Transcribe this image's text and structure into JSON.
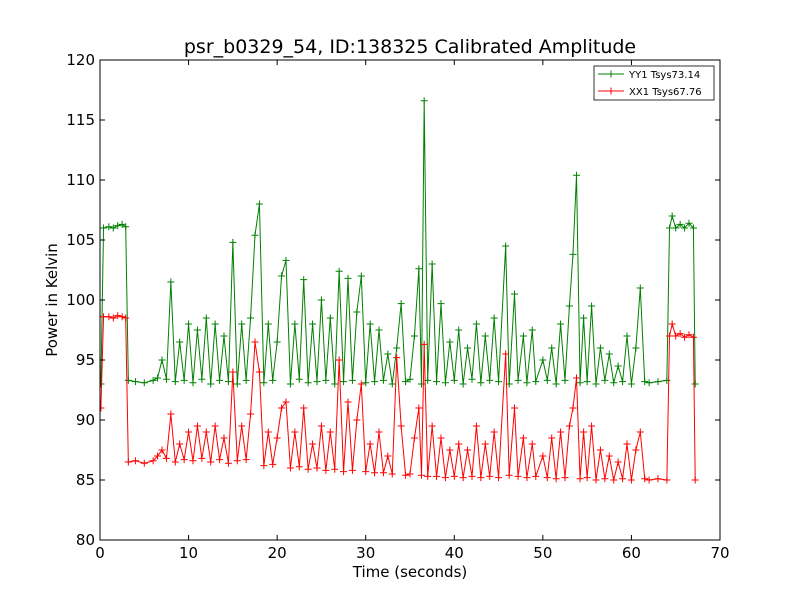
{
  "chart_data": {
    "type": "line",
    "title": "psr_b0329_54, ID:138325 Calibrated Amplitude",
    "xlabel": "Time (seconds)",
    "ylabel": "Power in Kelvin",
    "xlim": [
      0,
      70
    ],
    "ylim": [
      80,
      120
    ],
    "x_ticks": [
      "0",
      "10",
      "20",
      "30",
      "40",
      "50",
      "60",
      "70"
    ],
    "y_ticks": [
      "80",
      "85",
      "90",
      "95",
      "100",
      "105",
      "110",
      "115",
      "120"
    ],
    "grid": false,
    "legend_position": "top-right",
    "marker": "plus",
    "series": [
      {
        "name": "YY1 Tsys73.14",
        "color": "#008000",
        "points": [
          [
            0.1,
            93.0
          ],
          [
            0.4,
            106.0
          ],
          [
            1.0,
            106.1
          ],
          [
            1.5,
            106.0
          ],
          [
            2.0,
            106.2
          ],
          [
            2.5,
            106.3
          ],
          [
            2.9,
            106.1
          ],
          [
            3.2,
            93.3
          ],
          [
            4.0,
            93.2
          ],
          [
            5.0,
            93.1
          ],
          [
            6.0,
            93.3
          ],
          [
            6.5,
            93.5
          ],
          [
            7.0,
            95.0
          ],
          [
            7.5,
            93.4
          ],
          [
            8.0,
            101.5
          ],
          [
            8.5,
            93.2
          ],
          [
            9.0,
            96.5
          ],
          [
            9.5,
            93.3
          ],
          [
            10.0,
            98.0
          ],
          [
            10.5,
            93.1
          ],
          [
            11.0,
            97.5
          ],
          [
            11.5,
            93.4
          ],
          [
            12.0,
            98.5
          ],
          [
            12.5,
            93.0
          ],
          [
            13.0,
            98.0
          ],
          [
            13.5,
            93.3
          ],
          [
            14.0,
            97.0
          ],
          [
            14.5,
            93.2
          ],
          [
            15.0,
            104.8
          ],
          [
            15.5,
            93.0
          ],
          [
            16.0,
            98.0
          ],
          [
            16.5,
            93.3
          ],
          [
            17.0,
            98.5
          ],
          [
            17.5,
            105.4
          ],
          [
            18.0,
            108.0
          ],
          [
            18.5,
            93.1
          ],
          [
            19.0,
            98.0
          ],
          [
            19.5,
            93.3
          ],
          [
            20.0,
            96.5
          ],
          [
            20.5,
            102.0
          ],
          [
            21.0,
            103.3
          ],
          [
            21.5,
            93.0
          ],
          [
            22.0,
            98.0
          ],
          [
            22.5,
            93.4
          ],
          [
            23.0,
            101.7
          ],
          [
            23.5,
            93.1
          ],
          [
            24.0,
            98.0
          ],
          [
            24.5,
            93.2
          ],
          [
            25.0,
            100.0
          ],
          [
            25.5,
            93.3
          ],
          [
            26.0,
            98.5
          ],
          [
            26.5,
            93.0
          ],
          [
            27.0,
            102.4
          ],
          [
            27.5,
            93.2
          ],
          [
            28.0,
            101.8
          ],
          [
            28.5,
            93.3
          ],
          [
            29.0,
            99.0
          ],
          [
            29.5,
            102.0
          ],
          [
            30.0,
            93.1
          ],
          [
            30.5,
            98.0
          ],
          [
            31.0,
            93.2
          ],
          [
            31.5,
            97.5
          ],
          [
            32.0,
            93.3
          ],
          [
            32.5,
            95.5
          ],
          [
            33.0,
            93.0
          ],
          [
            33.5,
            96.0
          ],
          [
            34.0,
            99.7
          ],
          [
            34.5,
            93.2
          ],
          [
            35.0,
            93.4
          ],
          [
            35.5,
            97.0
          ],
          [
            36.0,
            102.6
          ],
          [
            36.3,
            93.0
          ],
          [
            36.6,
            116.6
          ],
          [
            37.0,
            93.3
          ],
          [
            37.5,
            103.0
          ],
          [
            38.0,
            93.2
          ],
          [
            38.5,
            99.7
          ],
          [
            39.0,
            93.1
          ],
          [
            39.5,
            96.5
          ],
          [
            40.0,
            93.3
          ],
          [
            40.5,
            97.5
          ],
          [
            41.0,
            93.0
          ],
          [
            41.5,
            96.0
          ],
          [
            42.0,
            93.4
          ],
          [
            42.5,
            98.0
          ],
          [
            43.0,
            93.1
          ],
          [
            43.5,
            97.0
          ],
          [
            44.0,
            93.3
          ],
          [
            44.5,
            98.5
          ],
          [
            45.0,
            93.2
          ],
          [
            45.8,
            104.5
          ],
          [
            46.2,
            93.0
          ],
          [
            46.8,
            100.5
          ],
          [
            47.2,
            93.3
          ],
          [
            47.8,
            97.0
          ],
          [
            48.2,
            93.1
          ],
          [
            48.8,
            97.5
          ],
          [
            49.2,
            93.2
          ],
          [
            50.0,
            95.0
          ],
          [
            50.5,
            93.3
          ],
          [
            51.0,
            96.0
          ],
          [
            51.5,
            93.0
          ],
          [
            52.0,
            98.0
          ],
          [
            52.5,
            93.3
          ],
          [
            53.0,
            99.5
          ],
          [
            53.4,
            103.8
          ],
          [
            53.8,
            110.4
          ],
          [
            54.2,
            93.1
          ],
          [
            54.6,
            98.5
          ],
          [
            55.0,
            93.2
          ],
          [
            55.5,
            99.5
          ],
          [
            56.0,
            93.0
          ],
          [
            56.5,
            96.0
          ],
          [
            57.0,
            93.3
          ],
          [
            57.5,
            95.5
          ],
          [
            58.0,
            93.1
          ],
          [
            58.5,
            94.5
          ],
          [
            59.0,
            93.2
          ],
          [
            59.5,
            97.0
          ],
          [
            60.0,
            93.0
          ],
          [
            60.5,
            96.0
          ],
          [
            61.0,
            101.0
          ],
          [
            61.5,
            93.2
          ],
          [
            62.0,
            93.1
          ],
          [
            63.0,
            93.2
          ],
          [
            64.0,
            93.3
          ],
          [
            64.3,
            106.0
          ],
          [
            64.6,
            107.0
          ],
          [
            65.0,
            106.0
          ],
          [
            65.5,
            106.3
          ],
          [
            66.0,
            106.0
          ],
          [
            66.5,
            106.4
          ],
          [
            67.0,
            106.0
          ],
          [
            67.2,
            93.0
          ]
        ]
      },
      {
        "name": "XX1 Tsys67.76",
        "color": "#ff0000",
        "points": [
          [
            0.1,
            91.0
          ],
          [
            0.4,
            98.6
          ],
          [
            1.0,
            98.6
          ],
          [
            1.5,
            98.5
          ],
          [
            2.0,
            98.7
          ],
          [
            2.5,
            98.6
          ],
          [
            2.9,
            98.5
          ],
          [
            3.2,
            86.5
          ],
          [
            4.0,
            86.6
          ],
          [
            5.0,
            86.4
          ],
          [
            6.0,
            86.6
          ],
          [
            6.5,
            87.0
          ],
          [
            7.0,
            87.5
          ],
          [
            7.5,
            86.8
          ],
          [
            8.0,
            90.5
          ],
          [
            8.5,
            86.5
          ],
          [
            9.0,
            88.0
          ],
          [
            9.5,
            86.7
          ],
          [
            10.0,
            89.0
          ],
          [
            10.5,
            86.6
          ],
          [
            11.0,
            89.5
          ],
          [
            11.5,
            86.8
          ],
          [
            12.0,
            89.0
          ],
          [
            12.5,
            86.5
          ],
          [
            13.0,
            89.5
          ],
          [
            13.5,
            86.7
          ],
          [
            14.0,
            88.5
          ],
          [
            14.5,
            86.4
          ],
          [
            15.0,
            94.0
          ],
          [
            15.5,
            86.6
          ],
          [
            16.0,
            89.5
          ],
          [
            16.5,
            86.7
          ],
          [
            17.0,
            90.5
          ],
          [
            17.5,
            96.5
          ],
          [
            18.0,
            94.0
          ],
          [
            18.5,
            86.2
          ],
          [
            19.0,
            89.0
          ],
          [
            19.5,
            86.3
          ],
          [
            20.0,
            88.5
          ],
          [
            20.5,
            91.0
          ],
          [
            21.0,
            91.5
          ],
          [
            21.5,
            86.0
          ],
          [
            22.0,
            89.0
          ],
          [
            22.5,
            86.1
          ],
          [
            23.0,
            91.0
          ],
          [
            23.5,
            85.9
          ],
          [
            24.0,
            88.0
          ],
          [
            24.5,
            86.0
          ],
          [
            25.0,
            89.5
          ],
          [
            25.5,
            85.8
          ],
          [
            26.0,
            89.0
          ],
          [
            26.5,
            85.9
          ],
          [
            27.0,
            95.0
          ],
          [
            27.5,
            85.7
          ],
          [
            28.0,
            91.5
          ],
          [
            28.5,
            85.8
          ],
          [
            29.0,
            90.0
          ],
          [
            29.5,
            93.0
          ],
          [
            30.0,
            85.7
          ],
          [
            30.5,
            88.0
          ],
          [
            31.0,
            85.6
          ],
          [
            31.5,
            89.0
          ],
          [
            32.0,
            85.6
          ],
          [
            32.5,
            87.0
          ],
          [
            33.0,
            85.5
          ],
          [
            33.5,
            95.2
          ],
          [
            34.0,
            89.5
          ],
          [
            34.5,
            85.4
          ],
          [
            35.0,
            85.5
          ],
          [
            35.5,
            88.5
          ],
          [
            36.0,
            91.0
          ],
          [
            36.3,
            85.4
          ],
          [
            36.6,
            96.3
          ],
          [
            37.0,
            85.3
          ],
          [
            37.5,
            89.5
          ],
          [
            38.0,
            85.3
          ],
          [
            38.5,
            88.5
          ],
          [
            39.0,
            85.2
          ],
          [
            39.5,
            87.5
          ],
          [
            40.0,
            85.3
          ],
          [
            40.5,
            88.0
          ],
          [
            41.0,
            85.2
          ],
          [
            41.5,
            87.5
          ],
          [
            42.0,
            85.3
          ],
          [
            42.5,
            89.5
          ],
          [
            43.0,
            85.2
          ],
          [
            43.5,
            88.0
          ],
          [
            44.0,
            85.3
          ],
          [
            44.5,
            89.0
          ],
          [
            45.0,
            85.2
          ],
          [
            45.8,
            95.5
          ],
          [
            46.2,
            85.4
          ],
          [
            46.8,
            91.0
          ],
          [
            47.2,
            85.3
          ],
          [
            47.8,
            88.5
          ],
          [
            48.2,
            85.2
          ],
          [
            48.8,
            88.0
          ],
          [
            49.2,
            85.3
          ],
          [
            50.0,
            87.0
          ],
          [
            50.5,
            85.2
          ],
          [
            51.0,
            88.5
          ],
          [
            51.5,
            85.1
          ],
          [
            52.0,
            89.0
          ],
          [
            52.5,
            85.2
          ],
          [
            53.0,
            89.5
          ],
          [
            53.4,
            91.0
          ],
          [
            53.8,
            93.5
          ],
          [
            54.2,
            85.1
          ],
          [
            54.6,
            89.0
          ],
          [
            55.0,
            85.2
          ],
          [
            55.5,
            89.5
          ],
          [
            56.0,
            85.0
          ],
          [
            56.5,
            87.5
          ],
          [
            57.0,
            85.1
          ],
          [
            57.5,
            87.0
          ],
          [
            58.0,
            85.0
          ],
          [
            58.5,
            86.5
          ],
          [
            59.0,
            85.1
          ],
          [
            59.5,
            88.0
          ],
          [
            60.0,
            85.0
          ],
          [
            60.5,
            87.5
          ],
          [
            61.0,
            89.0
          ],
          [
            61.5,
            85.1
          ],
          [
            62.0,
            85.0
          ],
          [
            63.0,
            85.1
          ],
          [
            64.0,
            85.0
          ],
          [
            64.3,
            97.0
          ],
          [
            64.6,
            98.0
          ],
          [
            65.0,
            97.0
          ],
          [
            65.5,
            97.2
          ],
          [
            66.0,
            96.9
          ],
          [
            66.5,
            97.1
          ],
          [
            67.0,
            96.9
          ],
          [
            67.2,
            85.0
          ]
        ]
      }
    ]
  }
}
